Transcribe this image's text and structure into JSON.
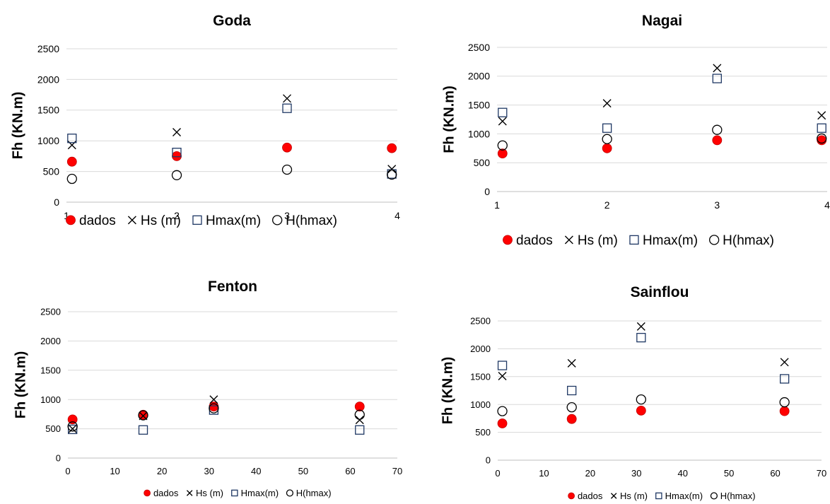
{
  "chart_data": [
    {
      "type": "scatter",
      "title": "Goda",
      "ylabel": "Fh (KN.m)",
      "xlabel": "",
      "xlim": [
        1,
        4
      ],
      "ylim": [
        0,
        2500
      ],
      "xticks": [
        1,
        2,
        3,
        4
      ],
      "yticks": [
        0,
        500,
        1000,
        1500,
        2000,
        2500
      ],
      "grid": true,
      "legend": "bottom",
      "series": [
        {
          "name": "dados",
          "marker": "filled-circle",
          "x": [
            1.05,
            2.0,
            3.0,
            3.95
          ],
          "y": [
            660,
            750,
            890,
            880
          ]
        },
        {
          "name": "Hs (m)",
          "marker": "cross",
          "x": [
            1.05,
            2.0,
            3.0,
            3.95
          ],
          "y": [
            930,
            1140,
            1690,
            540
          ]
        },
        {
          "name": "Hmax(m)",
          "marker": "square",
          "x": [
            1.05,
            2.0,
            3.0,
            3.95
          ],
          "y": [
            1040,
            810,
            1530,
            460
          ]
        },
        {
          "name": "H(hmax)",
          "marker": "circle",
          "x": [
            1.05,
            2.0,
            3.0,
            3.95
          ],
          "y": [
            380,
            440,
            530,
            450
          ]
        }
      ]
    },
    {
      "type": "scatter",
      "title": "Nagai",
      "ylabel": "Fh (KN.m)",
      "xlabel": "",
      "xlim": [
        1,
        4
      ],
      "ylim": [
        0,
        2500
      ],
      "xticks": [
        1,
        2,
        3,
        4
      ],
      "yticks": [
        0,
        500,
        1000,
        1500,
        2000,
        2500
      ],
      "grid": true,
      "legend": "bottom",
      "series": [
        {
          "name": "dados",
          "marker": "filled-circle",
          "x": [
            1.05,
            2.0,
            3.0,
            3.95
          ],
          "y": [
            660,
            750,
            890,
            890
          ]
        },
        {
          "name": "Hs (m)",
          "marker": "cross",
          "x": [
            1.05,
            2.0,
            3.0,
            3.95
          ],
          "y": [
            1220,
            1530,
            2140,
            1320
          ]
        },
        {
          "name": "Hmax(m)",
          "marker": "square",
          "x": [
            1.05,
            2.0,
            3.0,
            3.95
          ],
          "y": [
            1370,
            1100,
            1960,
            1100
          ]
        },
        {
          "name": "H(hmax)",
          "marker": "circle",
          "x": [
            1.05,
            2.0,
            3.0,
            3.95
          ],
          "y": [
            800,
            910,
            1070,
            920
          ]
        }
      ]
    },
    {
      "type": "scatter",
      "title": "Fenton",
      "ylabel": "Fh (KN.m)",
      "xlabel": "",
      "xlim": [
        0,
        70
      ],
      "ylim": [
        0,
        2500
      ],
      "xticks": [
        0,
        10,
        20,
        30,
        40,
        50,
        60,
        70
      ],
      "yticks": [
        0,
        500,
        1000,
        1500,
        2000,
        2500
      ],
      "grid": true,
      "legend": "bottom",
      "series": [
        {
          "name": "dados",
          "marker": "filled-circle",
          "x": [
            1,
            16,
            31,
            62
          ],
          "y": [
            660,
            740,
            880,
            880
          ]
        },
        {
          "name": "Hs (m)",
          "marker": "cross",
          "x": [
            1,
            16,
            31,
            62
          ],
          "y": [
            500,
            720,
            1000,
            650
          ]
        },
        {
          "name": "Hmax(m)",
          "marker": "square",
          "x": [
            1,
            16,
            31,
            62
          ],
          "y": [
            490,
            480,
            820,
            480
          ]
        },
        {
          "name": "H(hmax)",
          "marker": "circle",
          "x": [
            1,
            16,
            31,
            62
          ],
          "y": [
            540,
            730,
            850,
            740
          ]
        }
      ]
    },
    {
      "type": "scatter",
      "title": "Sainflou",
      "ylabel": "Fh (KN.m)",
      "xlabel": "",
      "xlim": [
        0,
        70
      ],
      "ylim": [
        0,
        2500
      ],
      "xticks": [
        0,
        10,
        20,
        30,
        40,
        50,
        60,
        70
      ],
      "yticks": [
        0,
        500,
        1000,
        1500,
        2000,
        2500
      ],
      "grid": true,
      "legend": "bottom",
      "series": [
        {
          "name": "dados",
          "marker": "filled-circle",
          "x": [
            1,
            16,
            31,
            62
          ],
          "y": [
            660,
            740,
            890,
            880
          ]
        },
        {
          "name": "Hs (m)",
          "marker": "cross",
          "x": [
            1,
            16,
            31,
            62
          ],
          "y": [
            1510,
            1740,
            2400,
            1760
          ]
        },
        {
          "name": "Hmax(m)",
          "marker": "square",
          "x": [
            1,
            16,
            31,
            62
          ],
          "y": [
            1700,
            1250,
            2200,
            1460
          ]
        },
        {
          "name": "H(hmax)",
          "marker": "circle",
          "x": [
            1,
            16,
            31,
            62
          ],
          "y": [
            880,
            950,
            1090,
            1040
          ]
        }
      ]
    }
  ],
  "colors": {
    "dados_fill": "#ff0000",
    "marker_stroke_dark": "#000000",
    "square_stroke": "#1f3864",
    "gridline": "#d9d9d9",
    "axis": "#bfbfbf",
    "text": "#000000"
  }
}
